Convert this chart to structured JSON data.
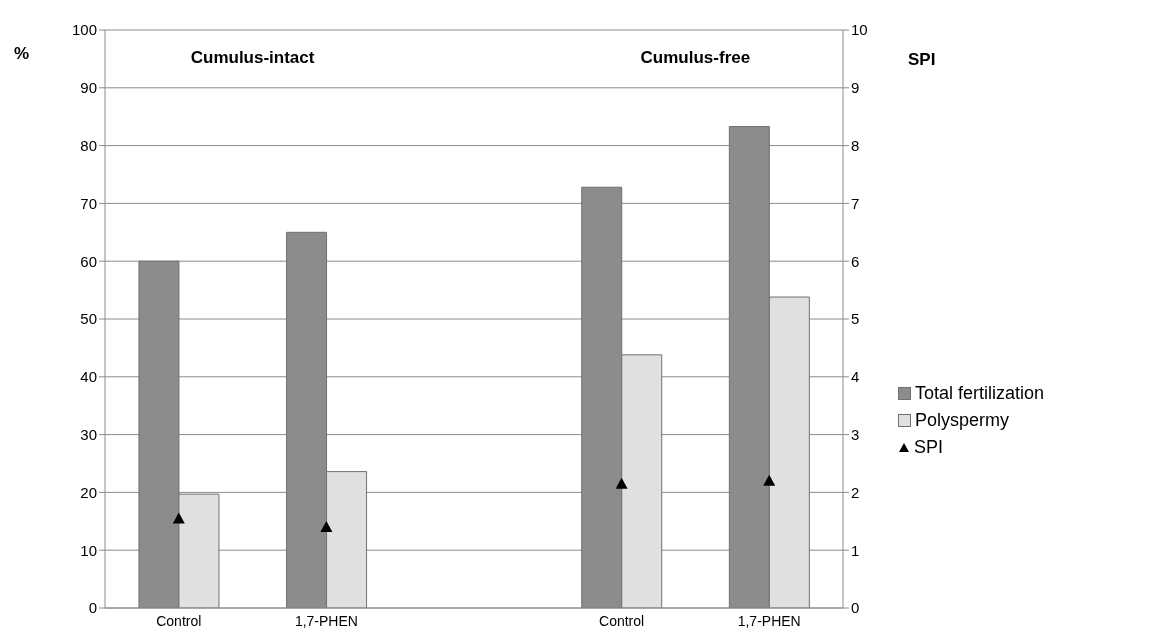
{
  "chart_data": {
    "type": "bar",
    "categories": [
      "Control",
      "1,7-PHEN",
      null,
      "Control",
      "1,7-PHEN"
    ],
    "series": [
      {
        "name": "Total fertilization",
        "color": "#8c8c8c",
        "values": [
          60,
          65,
          null,
          72.8,
          83.3
        ]
      },
      {
        "name": "Polyspermy",
        "color": "#e0e0e0",
        "values": [
          19.7,
          23.6,
          null,
          43.8,
          53.8
        ]
      },
      {
        "name": "SPI",
        "type": "scatter",
        "axis": "y2",
        "marker": "triangle",
        "color": "#000000",
        "values": [
          1.55,
          1.4,
          null,
          2.15,
          2.2
        ]
      }
    ],
    "ylabel": "%",
    "y2label": "SPI",
    "ylim": [
      0,
      100
    ],
    "yticks": [
      0,
      10,
      20,
      30,
      40,
      50,
      60,
      70,
      80,
      90,
      100
    ],
    "y2lim": [
      0,
      10
    ],
    "y2ticks": [
      0,
      1,
      2,
      3,
      4,
      5,
      6,
      7,
      8,
      9,
      10
    ],
    "grid": "y",
    "legend": "right",
    "annotations": [
      "Cumulus-intact",
      "Cumulus-free"
    ]
  }
}
